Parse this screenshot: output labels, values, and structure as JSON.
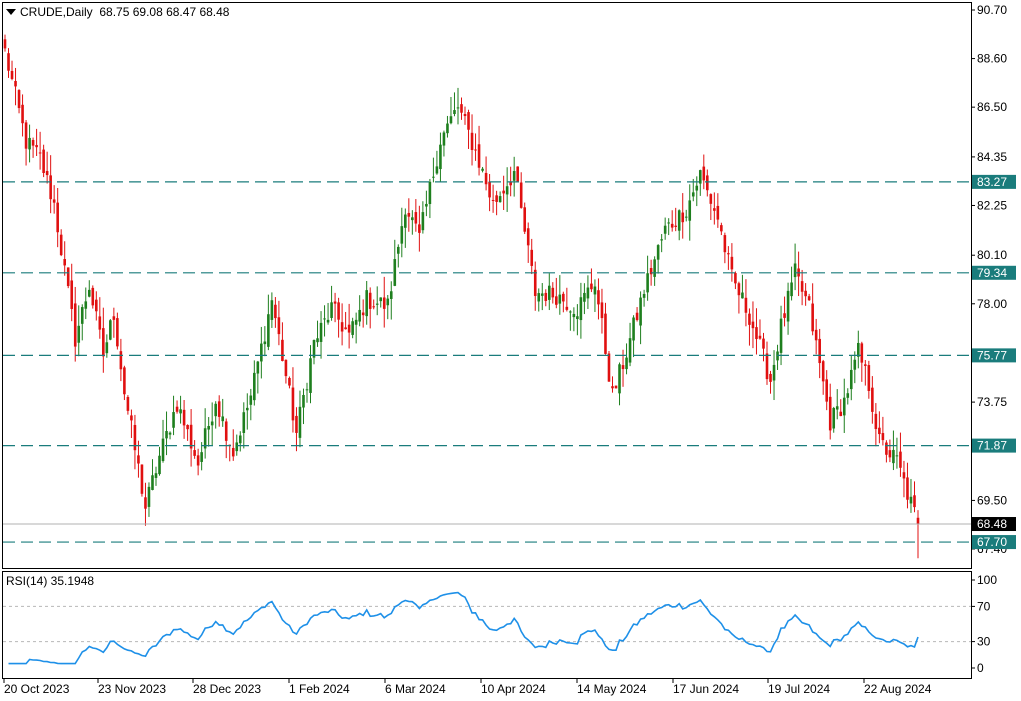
{
  "header": {
    "symbol": "CRUDE,Daily",
    "ohlc": "68.75 69.08 68.47 68.48"
  },
  "rsi_header": "RSI(14) 35.1948",
  "colors": {
    "bull": "#1e7f1e",
    "bear": "#e01010",
    "level": "#1a7c7c",
    "rsi": "#1e90e8",
    "current_bg": "#000000"
  },
  "chart_data": [
    {
      "type": "candlestick",
      "title": "",
      "price_axis_labels": [
        "90.70",
        "88.60",
        "86.50",
        "84.35",
        "82.25",
        "80.10",
        "78.00",
        "75.77",
        "73.75",
        "71.87",
        "69.50",
        "68.48",
        "67.70",
        "67.40"
      ],
      "price_ticks": [
        90.7,
        88.6,
        86.5,
        84.35,
        82.25,
        80.1,
        78.0,
        73.75,
        69.5,
        67.4
      ],
      "ylim": [
        67.0,
        90.7
      ],
      "x_tick_labels": [
        "20 Oct 2023",
        "23 Nov 2023",
        "28 Dec 2023",
        "1 Feb 2024",
        "6 Mar 2024",
        "10 Apr 2024",
        "14 May 2024",
        "17 Jun 2024",
        "19 Jul 2024",
        "22 Aug 2024"
      ],
      "levels": [
        83.27,
        79.34,
        75.77,
        71.87,
        67.7
      ],
      "current_price": 68.48,
      "anchors": [
        [
          0,
          88.9
        ],
        [
          6,
          85.0
        ],
        [
          10,
          84.3
        ],
        [
          14,
          82.3
        ],
        [
          20,
          76.5
        ],
        [
          24,
          78.8
        ],
        [
          28,
          75.8
        ],
        [
          31,
          77.6
        ],
        [
          34,
          74.2
        ],
        [
          40,
          69.2
        ],
        [
          44,
          71.4
        ],
        [
          49,
          73.7
        ],
        [
          55,
          71.1
        ],
        [
          60,
          73.9
        ],
        [
          65,
          71.6
        ],
        [
          70,
          74.0
        ],
        [
          76,
          78.2
        ],
        [
          83,
          72.4
        ],
        [
          88,
          76.3
        ],
        [
          93,
          77.8
        ],
        [
          98,
          76.6
        ],
        [
          103,
          78.2
        ],
        [
          109,
          77.9
        ],
        [
          114,
          82.3
        ],
        [
          118,
          80.8
        ],
        [
          124,
          85.1
        ],
        [
          129,
          86.5
        ],
        [
          134,
          84.6
        ],
        [
          139,
          82.3
        ],
        [
          145,
          83.7
        ],
        [
          151,
          78.5
        ],
        [
          157,
          78.4
        ],
        [
          163,
          77.8
        ],
        [
          168,
          79.0
        ],
        [
          173,
          74.0
        ],
        [
          177,
          75.9
        ],
        [
          182,
          78.6
        ],
        [
          188,
          81.2
        ],
        [
          194,
          82.1
        ],
        [
          198,
          83.6
        ],
        [
          203,
          81.7
        ],
        [
          207,
          79.1
        ],
        [
          212,
          77.5
        ],
        [
          218,
          74.7
        ],
        [
          221,
          77.0
        ],
        [
          225,
          79.3
        ],
        [
          229,
          77.8
        ],
        [
          235,
          72.9
        ],
        [
          239,
          73.8
        ],
        [
          243,
          75.9
        ],
        [
          246,
          74.5
        ],
        [
          249,
          72.0
        ],
        [
          254,
          71.2
        ],
        [
          257,
          69.8
        ],
        [
          260,
          68.48
        ]
      ]
    },
    {
      "type": "line",
      "title": "RSI(14) 35.1948",
      "ylim": [
        0,
        100
      ],
      "y_tick_labels": [
        "100",
        "70",
        "30",
        "0"
      ],
      "levels": [
        70,
        30
      ],
      "current_value": 35.1948
    }
  ]
}
